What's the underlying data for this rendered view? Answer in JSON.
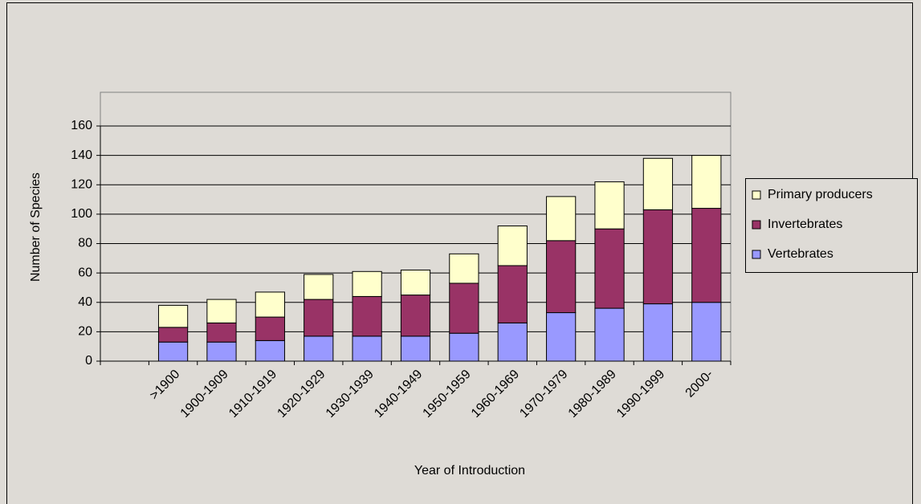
{
  "chart_data": {
    "type": "stacked_bar",
    "categories": [
      null,
      ">1900",
      "1900-1909",
      "1910-1919",
      "1920-1929",
      "1930-1939",
      "1940-1949",
      "1950-1959",
      "1960-1969",
      "1970-1979",
      "1980-1989",
      "1990-1999",
      "2000-"
    ],
    "series": [
      {
        "name": "Vertebrates",
        "color": "#9999ff",
        "values": [
          null,
          13,
          13,
          14,
          17,
          17,
          17,
          19,
          26,
          33,
          36,
          39,
          40
        ]
      },
      {
        "name": "Invertebrates",
        "color": "#993366",
        "values": [
          null,
          10,
          13,
          16,
          25,
          27,
          28,
          34,
          39,
          49,
          54,
          64,
          64
        ]
      },
      {
        "name": "Primary producers",
        "color": "#ffffcc",
        "values": [
          null,
          15,
          16,
          17,
          17,
          17,
          17,
          20,
          27,
          30,
          32,
          35,
          36
        ]
      }
    ],
    "x_label": "Year of Introduction",
    "y_label": "Number of Species",
    "ylim": [
      0,
      160
    ],
    "yticks": [
      0,
      20,
      40,
      60,
      80,
      100,
      120,
      140,
      160
    ],
    "grid": true,
    "legend_position": "right"
  }
}
